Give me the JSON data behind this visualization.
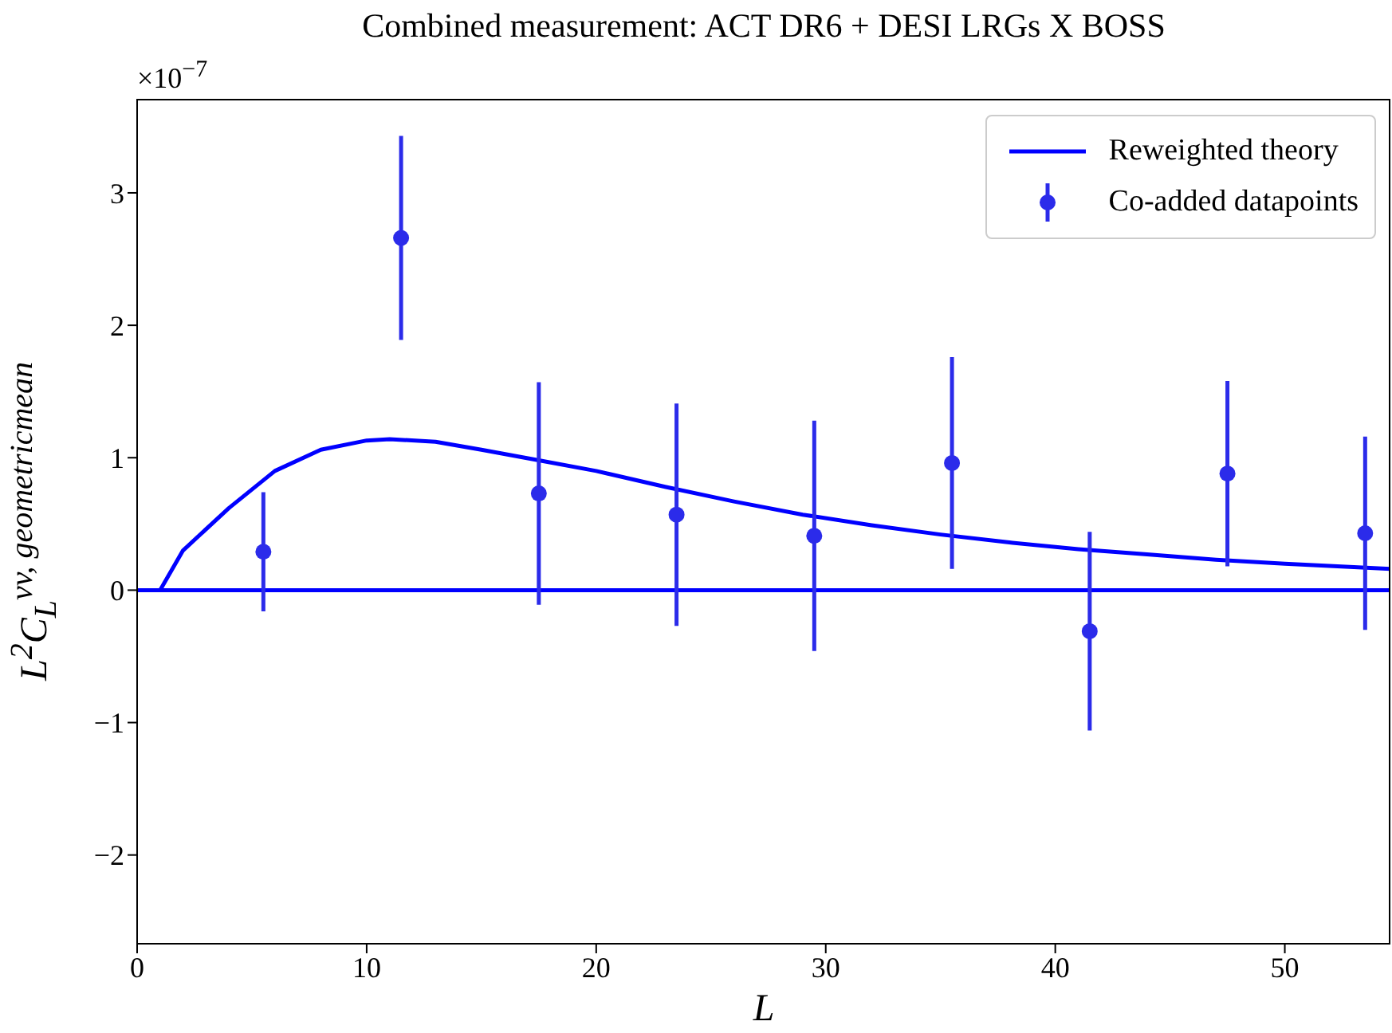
{
  "chart_data": {
    "type": "scatter",
    "title": "Combined measurement: ACT DR6 + DESI LRGs X BOSS",
    "xlabel": "L",
    "ylabel": "L$^{2}$C$_{L}$$^{vv, geometricmean}$",
    "annotations": [
      "×10$^{−7}$"
    ],
    "series": [
      {
        "name": "Reweighted theory",
        "type": "line",
        "marker": "none",
        "color": "#0000ff",
        "x": [
          0,
          1,
          2,
          4,
          6,
          8,
          10,
          11,
          13,
          15,
          17.5,
          20,
          23,
          26,
          29,
          32,
          35,
          38,
          41,
          44,
          47,
          50,
          54.6
        ],
        "values": [
          0,
          0,
          0.3,
          0.62,
          0.9,
          1.06,
          1.13,
          1.14,
          1.12,
          1.06,
          0.98,
          0.9,
          0.78,
          0.67,
          0.57,
          0.49,
          0.42,
          0.36,
          0.31,
          0.27,
          0.23,
          0.2,
          0.16
        ]
      },
      {
        "name": "Co-added datapoints",
        "color": "#2b2bea",
        "x": [
          5.5,
          11.5,
          17.5,
          23.5,
          29.5,
          35.5,
          41.5,
          47.5,
          53.5
        ],
        "values": [
          0.29,
          2.66,
          0.73,
          0.57,
          0.41,
          0.96,
          -0.31,
          0.88,
          0.43
        ],
        "errors": [
          0.45,
          0.77,
          0.84,
          0.84,
          0.87,
          0.8,
          0.75,
          0.7,
          0.73
        ]
      }
    ],
    "ref_lines": [
      {
        "axis": "y",
        "value": 0,
        "color": "#0000ff"
      }
    ],
    "xlim": [
      0,
      54.6
    ],
    "xticks": [
      0,
      10,
      20,
      30,
      40,
      50
    ],
    "ylim": [
      -2.67,
      3.71
    ],
    "yticks": [
      -2,
      -1,
      0,
      1,
      2,
      3
    ],
    "legend": "top right",
    "marker": "circle"
  }
}
